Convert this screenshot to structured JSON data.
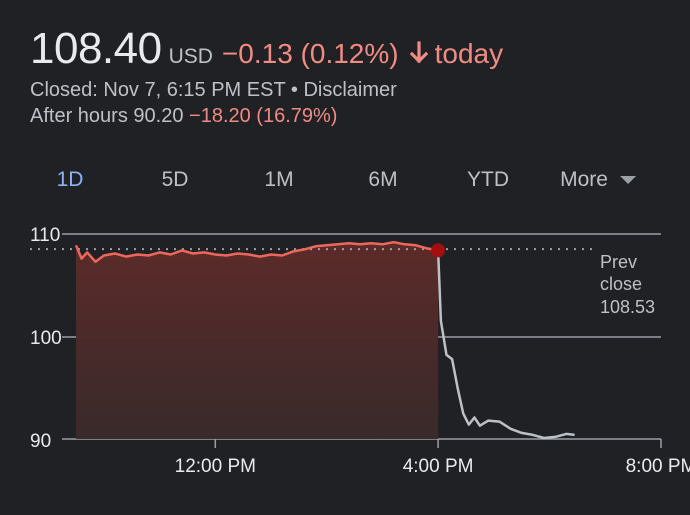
{
  "header": {
    "price": "108.40",
    "currency": "USD",
    "change": "−0.13 (0.12%)",
    "direction_icon": "arrow-down-icon",
    "today_label": "today",
    "closed_text": "Closed: Nov 7, 6:15 PM EST",
    "separator": "•",
    "disclaimer_label": "Disclaimer",
    "after_hours_label": "After hours",
    "after_hours_price": "90.20",
    "after_hours_change": "−18.20 (16.79%)"
  },
  "tabs": [
    {
      "label": "1D",
      "active": true
    },
    {
      "label": "5D",
      "active": false
    },
    {
      "label": "1M",
      "active": false
    },
    {
      "label": "6M",
      "active": false
    },
    {
      "label": "YTD",
      "active": false
    },
    {
      "label": "More",
      "active": false
    }
  ],
  "colors": {
    "negative": "#f28b82",
    "active_tab": "#8ab4f8",
    "regular_line": "#ee675c",
    "after_hours_line": "#bdc1c6",
    "close_marker": "#a50e0e"
  },
  "chart_data": {
    "type": "line",
    "y_ticks": [
      "110",
      "100",
      "90"
    ],
    "y_range": [
      90,
      110
    ],
    "x_range_hours": [
      9.5,
      20
    ],
    "x_ticks": [
      {
        "hour": 12,
        "label": "12:00 PM"
      },
      {
        "hour": 16,
        "label": "4:00 PM"
      },
      {
        "hour": 20,
        "label": "8:00 PM"
      }
    ],
    "prev_close": {
      "label_line1": "Prev",
      "label_line2": "close",
      "value": "108.53",
      "price": 108.53
    },
    "regular_session": [
      [
        9.5,
        108.9
      ],
      [
        9.6,
        107.6
      ],
      [
        9.7,
        108.2
      ],
      [
        9.85,
        107.3
      ],
      [
        10.0,
        107.9
      ],
      [
        10.2,
        108.1
      ],
      [
        10.4,
        107.8
      ],
      [
        10.6,
        108.0
      ],
      [
        10.8,
        107.9
      ],
      [
        11.0,
        108.2
      ],
      [
        11.2,
        108.0
      ],
      [
        11.4,
        108.4
      ],
      [
        11.6,
        108.1
      ],
      [
        11.8,
        108.2
      ],
      [
        12.0,
        108.0
      ],
      [
        12.2,
        107.9
      ],
      [
        12.4,
        108.1
      ],
      [
        12.6,
        108.0
      ],
      [
        12.8,
        107.8
      ],
      [
        13.0,
        108.0
      ],
      [
        13.2,
        107.9
      ],
      [
        13.4,
        108.3
      ],
      [
        13.6,
        108.5
      ],
      [
        13.8,
        108.8
      ],
      [
        14.0,
        108.9
      ],
      [
        14.2,
        109.0
      ],
      [
        14.4,
        109.1
      ],
      [
        14.6,
        109.0
      ],
      [
        14.8,
        109.1
      ],
      [
        15.0,
        109.0
      ],
      [
        15.2,
        109.2
      ],
      [
        15.4,
        109.0
      ],
      [
        15.6,
        108.9
      ],
      [
        15.8,
        108.6
      ],
      [
        16.0,
        108.4
      ]
    ],
    "after_hours": [
      [
        16.0,
        108.4
      ],
      [
        16.05,
        101.5
      ],
      [
        16.15,
        98.2
      ],
      [
        16.25,
        97.8
      ],
      [
        16.35,
        95.0
      ],
      [
        16.45,
        92.5
      ],
      [
        16.55,
        91.4
      ],
      [
        16.65,
        92.1
      ],
      [
        16.75,
        91.3
      ],
      [
        16.9,
        91.8
      ],
      [
        17.1,
        91.7
      ],
      [
        17.3,
        91.0
      ],
      [
        17.5,
        90.6
      ],
      [
        17.7,
        90.4
      ],
      [
        17.9,
        90.1
      ],
      [
        18.1,
        90.2
      ],
      [
        18.3,
        90.5
      ],
      [
        18.45,
        90.4
      ]
    ]
  }
}
